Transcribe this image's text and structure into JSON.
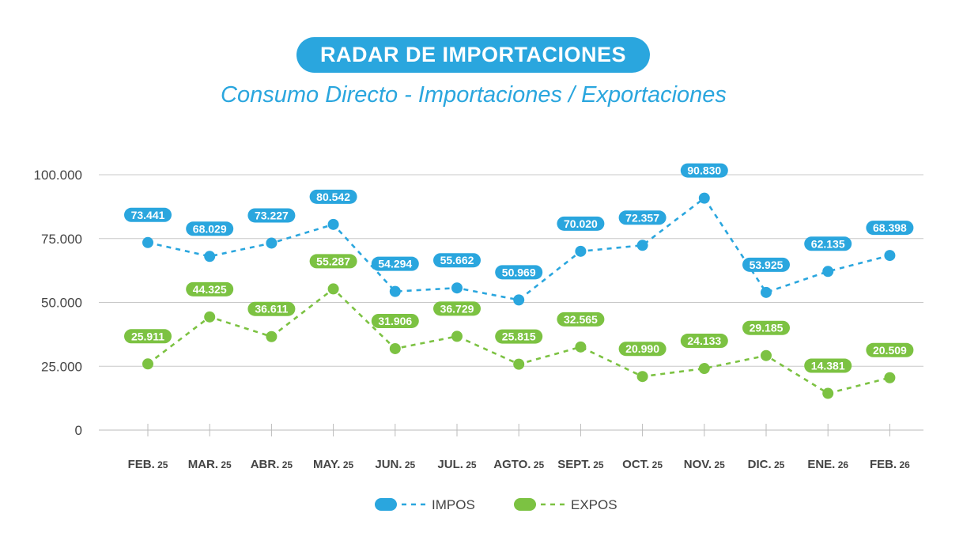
{
  "header": {
    "title": "RADAR DE IMPORTACIONES",
    "subtitle": "Consumo Directo - Importaciones / Exportaciones"
  },
  "chart_data": {
    "type": "line",
    "title": "RADAR DE IMPORTACIONES",
    "subtitle": "Consumo Directo - Importaciones / Exportaciones",
    "categories": [
      {
        "main": "FEB.",
        "sub": "25"
      },
      {
        "main": "MAR.",
        "sub": "25"
      },
      {
        "main": "ABR.",
        "sub": "25"
      },
      {
        "main": "MAY.",
        "sub": "25"
      },
      {
        "main": "JUN.",
        "sub": "25"
      },
      {
        "main": "JUL.",
        "sub": "25"
      },
      {
        "main": "AGTO.",
        "sub": "25"
      },
      {
        "main": "SEPT.",
        "sub": "25"
      },
      {
        "main": "OCT.",
        "sub": "25"
      },
      {
        "main": "NOV.",
        "sub": "25"
      },
      {
        "main": "DIC.",
        "sub": "25"
      },
      {
        "main": "ENE.",
        "sub": "26"
      },
      {
        "main": "FEB.",
        "sub": "26"
      }
    ],
    "series": [
      {
        "name": "IMPOS",
        "color": "#2aa6de",
        "values": [
          73441,
          68029,
          73227,
          80542,
          54294,
          55662,
          50969,
          70020,
          72357,
          90830,
          53925,
          62135,
          68398
        ],
        "labels": [
          "73.441",
          "68.029",
          "73.227",
          "80.542",
          "54.294",
          "55.662",
          "50.969",
          "70.020",
          "72.357",
          "90.830",
          "53.925",
          "62.135",
          "68.398"
        ]
      },
      {
        "name": "EXPOS",
        "color": "#7cc242",
        "values": [
          25911,
          44325,
          36611,
          55287,
          31906,
          36729,
          25815,
          32565,
          20990,
          24133,
          29185,
          14381,
          20509
        ],
        "labels": [
          "25.911",
          "44.325",
          "36.611",
          "55.287",
          "31.906",
          "36.729",
          "25.815",
          "32.565",
          "20.990",
          "24.133",
          "29.185",
          "14.381",
          "20.509"
        ]
      }
    ],
    "yticks": [
      {
        "value": 0,
        "label": "0"
      },
      {
        "value": 25000,
        "label": "25.000"
      },
      {
        "value": 50000,
        "label": "50.000"
      },
      {
        "value": 75000,
        "label": "75.000"
      },
      {
        "value": 100000,
        "label": "100.000"
      }
    ],
    "ylim": [
      0,
      100000
    ],
    "grid": true,
    "legend_position": "bottom-center",
    "line_style": "dashed"
  }
}
